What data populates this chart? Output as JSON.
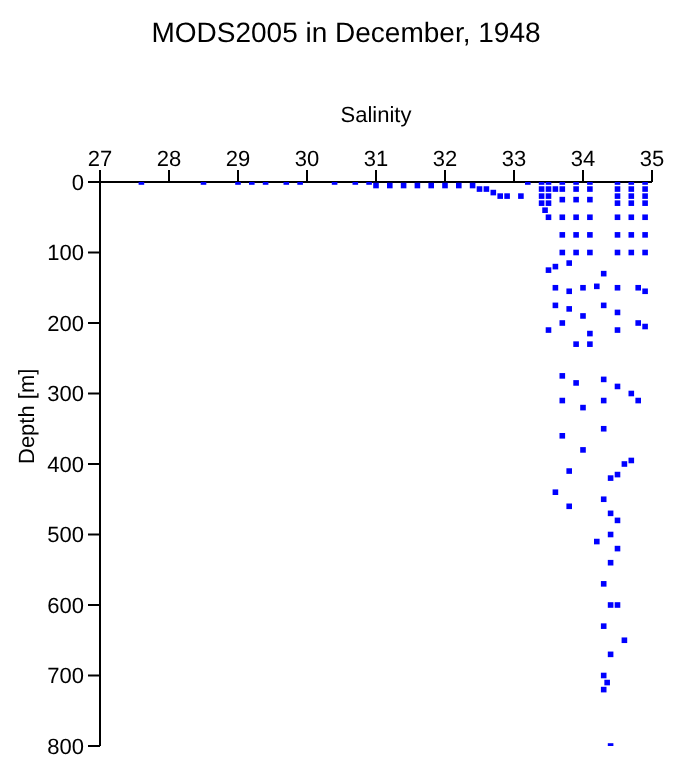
{
  "chart_data": {
    "type": "scatter",
    "title": "MODS2005 in December, 1948",
    "xlabel": "Salinity",
    "ylabel": "Depth [m]",
    "xlim": [
      27,
      35
    ],
    "xticks": [
      27,
      28,
      29,
      30,
      31,
      32,
      33,
      34,
      35
    ],
    "ylim": [
      800,
      0
    ],
    "yticks": [
      0,
      100,
      200,
      300,
      400,
      500,
      600,
      700,
      800
    ],
    "grid": false,
    "marker": "square",
    "series": [
      {
        "color": "#0000ff",
        "x": [
          27.6,
          28.5,
          29.0,
          29.2,
          29.4,
          29.7,
          29.9,
          30.4,
          30.7,
          30.9,
          31.0,
          31.2,
          31.4,
          31.6,
          31.8,
          32.0,
          32.2,
          32.4,
          32.5,
          32.6,
          32.7,
          32.8,
          32.9,
          33.1,
          33.2,
          33.4,
          33.5,
          33.4,
          33.5,
          33.4,
          33.5,
          33.4,
          33.5,
          33.45,
          33.5,
          33.6,
          34.5,
          34.7,
          34.9,
          34.5,
          34.7,
          34.9,
          34.5,
          34.7,
          34.9,
          34.5,
          34.7,
          34.9,
          34.5,
          34.7,
          34.9,
          34.5,
          34.7,
          34.9,
          34.5,
          34.7,
          34.9,
          33.7,
          33.9,
          34.1,
          33.7,
          33.9,
          34.1,
          33.7,
          33.9,
          34.1,
          33.7,
          33.9,
          34.1,
          33.7,
          33.9,
          34.1,
          33.7,
          33.9,
          34.1,
          33.5,
          33.6,
          33.8,
          34.3,
          33.6,
          33.8,
          34.0,
          34.2,
          34.5,
          34.8,
          34.9,
          33.6,
          33.8,
          34.0,
          34.3,
          34.5,
          33.5,
          33.7,
          34.1,
          34.5,
          34.8,
          34.9,
          33.9,
          34.1,
          33.7,
          33.9,
          34.3,
          34.5,
          34.7,
          34.8,
          33.7,
          34.0,
          34.3,
          33.7,
          34.0,
          34.3,
          34.6,
          34.7,
          33.8,
          34.4,
          34.5,
          33.6,
          34.3,
          34.4,
          33.8,
          34.5,
          34.4,
          34.2,
          34.5,
          34.4,
          34.3,
          34.4,
          34.5,
          34.3,
          34.6,
          34.4,
          34.3,
          34.35,
          34.3,
          34.4
        ],
        "values": [
          0,
          0,
          0,
          0,
          0,
          0,
          0,
          0,
          0,
          0,
          5,
          5,
          5,
          5,
          5,
          5,
          5,
          5,
          10,
          10,
          15,
          20,
          20,
          20,
          0,
          0,
          0,
          10,
          10,
          20,
          20,
          30,
          30,
          40,
          50,
          10,
          0,
          0,
          0,
          10,
          10,
          10,
          20,
          20,
          20,
          30,
          30,
          30,
          50,
          50,
          50,
          75,
          75,
          75,
          100,
          100,
          100,
          0,
          0,
          0,
          10,
          10,
          10,
          25,
          25,
          25,
          50,
          50,
          50,
          75,
          75,
          75,
          100,
          100,
          100,
          125,
          120,
          115,
          130,
          150,
          155,
          150,
          148,
          150,
          150,
          155,
          175,
          180,
          190,
          175,
          185,
          210,
          200,
          215,
          210,
          200,
          205,
          230,
          230,
          275,
          285,
          280,
          290,
          300,
          310,
          310,
          320,
          310,
          360,
          380,
          350,
          400,
          395,
          410,
          420,
          415,
          440,
          450,
          470,
          460,
          480,
          500,
          510,
          520,
          540,
          570,
          600,
          600,
          630,
          650,
          670,
          700,
          710,
          720,
          800
        ]
      }
    ]
  }
}
